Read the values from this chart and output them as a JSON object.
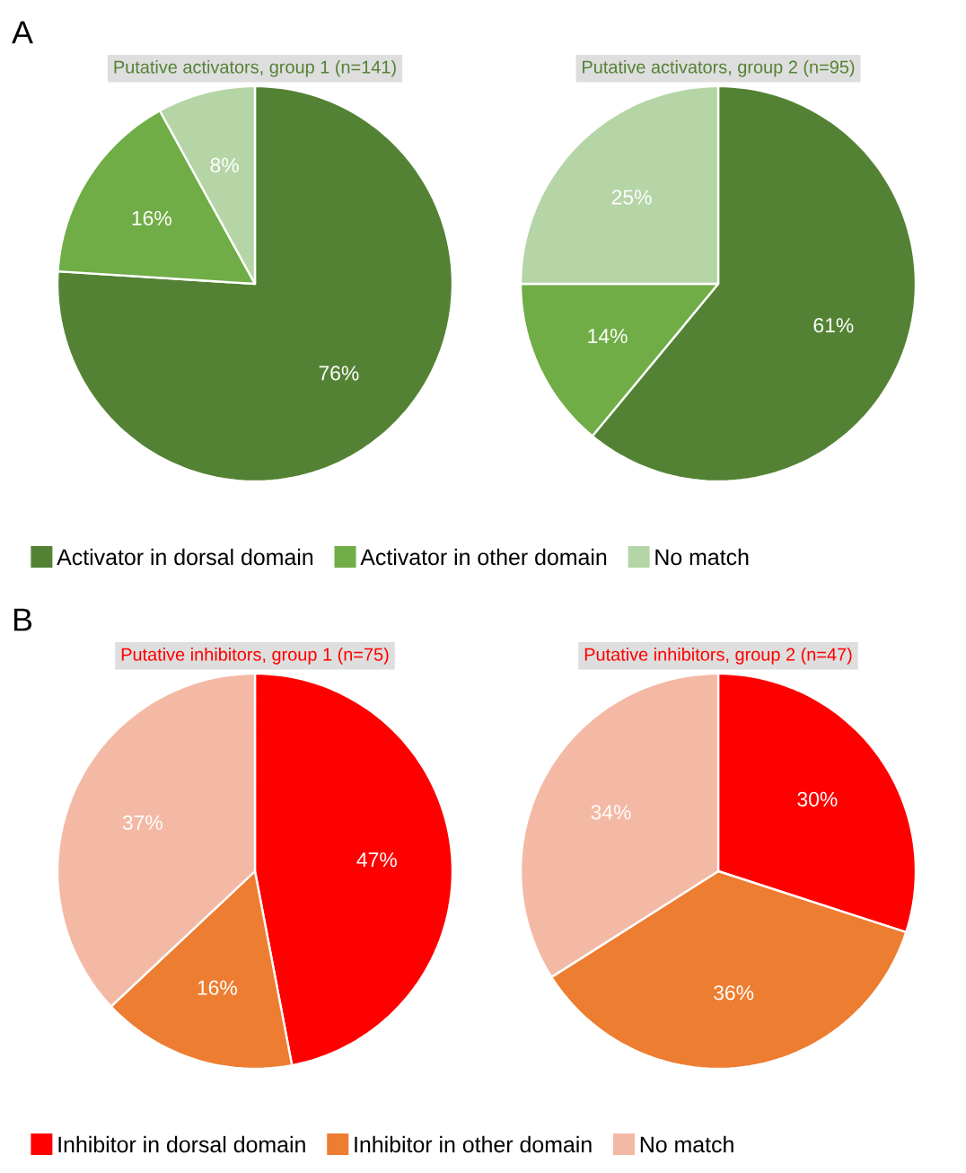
{
  "chart_data": [
    {
      "type": "pie",
      "title": "Putative activators, group 1 (n=141)",
      "annotations": [
        "A"
      ],
      "categories": [
        "Activator in dorsal domain",
        "Activator in other domain",
        "No match"
      ],
      "values": [
        76,
        16,
        8
      ],
      "value_labels": [
        "76%",
        "16%",
        "8%"
      ],
      "colors": [
        "#548235",
        "#70ad47",
        "#b5d5a6"
      ],
      "legend": "bottom"
    },
    {
      "type": "pie",
      "title": "Putative activators, group 2 (n=95)",
      "categories": [
        null,
        null,
        null
      ],
      "values": [
        61,
        14,
        25
      ],
      "value_labels": [
        "61%",
        "14%",
        "25%"
      ],
      "colors": [
        "#548235",
        "#70ad47",
        "#b5d5a6"
      ]
    },
    {
      "type": "pie",
      "title": "Putative inhibitors, group 1 (n=75)",
      "annotations": [
        "B"
      ],
      "categories": [
        "Inhibitor in dorsal domain",
        "Inhibitor in other domain",
        "No match"
      ],
      "values": [
        47,
        16,
        37
      ],
      "value_labels": [
        "47%",
        "16%",
        "37%"
      ],
      "colors": [
        "#ff0000",
        "#ed7d31",
        "#f4b9a4"
      ],
      "legend": "bottom"
    },
    {
      "type": "pie",
      "title": "Putative inhibitors, group 2 (n=47)",
      "categories": [
        null,
        null,
        null
      ],
      "values": [
        30,
        36,
        34
      ],
      "value_labels": [
        "30%",
        "36%",
        "34%"
      ],
      "colors": [
        "#ff0000",
        "#ed7d31",
        "#f4b9a4"
      ]
    }
  ]
}
